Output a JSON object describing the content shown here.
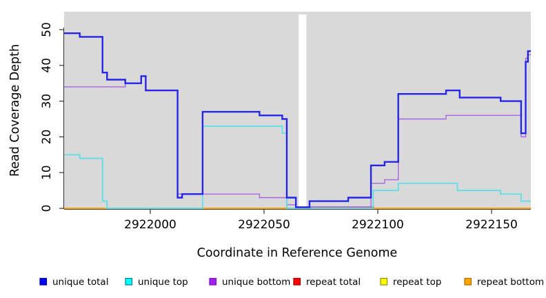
{
  "chart_data": {
    "type": "line",
    "subtype": "step-coverage",
    "title": "",
    "xlabel": "Coordinate in Reference Genome",
    "ylabel": "Read Coverage Depth",
    "xlim": [
      2921962,
      2922167.3
    ],
    "ylim": [
      0,
      50
    ],
    "x_ticks": [
      2922000,
      2922050,
      2922100,
      2922150
    ],
    "y_ticks": [
      0,
      10,
      20,
      30,
      40,
      50
    ],
    "grid": false,
    "panel_background": "#d9d9d9",
    "gap": {
      "note": "white uncovered column in plot",
      "from": 2922065.2,
      "to": 2922068.6
    },
    "legend_position": "bottom",
    "series": [
      {
        "name": "unique total",
        "color": "#2525e8",
        "steps": [
          [
            2921962,
            49
          ],
          [
            2921969,
            48
          ],
          [
            2921979,
            38
          ],
          [
            2921981,
            36
          ],
          [
            2921989,
            35
          ],
          [
            2921996,
            37
          ],
          [
            2921998,
            33
          ],
          [
            2922012,
            3
          ],
          [
            2922014,
            4
          ],
          [
            2922023,
            27
          ],
          [
            2922048,
            26
          ],
          [
            2922058,
            25
          ],
          [
            2922060,
            3
          ],
          [
            2922064,
            0.3
          ],
          [
            2922070,
            2
          ],
          [
            2922087,
            3
          ],
          [
            2922097,
            12
          ],
          [
            2922103,
            13
          ],
          [
            2922109,
            32
          ],
          [
            2922130,
            33
          ],
          [
            2922136,
            31
          ],
          [
            2922154,
            30
          ],
          [
            2922163,
            21
          ],
          [
            2922165,
            41
          ],
          [
            2922166,
            44
          ]
        ]
      },
      {
        "name": "unique top",
        "color": "#55dfe8",
        "steps": [
          [
            2921962,
            15
          ],
          [
            2921969,
            14
          ],
          [
            2921979,
            2
          ],
          [
            2921981,
            0
          ],
          [
            2922023,
            23
          ],
          [
            2922058,
            21
          ],
          [
            2922060,
            0
          ],
          [
            2922098,
            5
          ],
          [
            2922109,
            7
          ],
          [
            2922135,
            5
          ],
          [
            2922154,
            4
          ],
          [
            2922163,
            2
          ]
        ]
      },
      {
        "name": "unique bottom",
        "color": "#a566e0",
        "steps": [
          [
            2921962,
            34
          ],
          [
            2921989,
            35
          ],
          [
            2921996,
            37
          ],
          [
            2921998,
            33
          ],
          [
            2922012,
            4
          ],
          [
            2922048,
            3
          ],
          [
            2922060,
            1
          ],
          [
            2922064,
            0.4
          ],
          [
            2922097,
            7
          ],
          [
            2922103,
            8
          ],
          [
            2922109,
            25
          ],
          [
            2922130,
            26
          ],
          [
            2922163,
            20
          ],
          [
            2922165,
            42
          ],
          [
            2922166,
            43
          ]
        ]
      },
      {
        "name": "repeat total",
        "color": "#FF0000",
        "steps": [
          [
            2921962,
            0
          ]
        ]
      },
      {
        "name": "repeat top",
        "color": "#FFFF00",
        "steps": [
          [
            2921962,
            0
          ]
        ]
      },
      {
        "name": "repeat bottom",
        "color": "#FFA500",
        "steps": [
          [
            2921962,
            0
          ]
        ]
      }
    ],
    "baseline_overlays": [
      {
        "from": 2921980.5,
        "to": 2922023,
        "value": 0,
        "color": "#96DBA4"
      },
      {
        "from": 2922069,
        "to": 2922098.5,
        "value": 0.35,
        "color": "#E2608A"
      }
    ],
    "legend": {
      "items": [
        {
          "label": "unique total",
          "fill": "#0000FF",
          "border": "#00008B"
        },
        {
          "label": "unique top",
          "fill": "#00FFFF",
          "border": "#007F86"
        },
        {
          "label": "unique bottom",
          "fill": "#A020F0",
          "border": "#7A12BD"
        },
        {
          "label": "repeat total",
          "fill": "#FF0000",
          "border": "#990000"
        },
        {
          "label": "repeat top",
          "fill": "#FFFF00",
          "border": "#8B8B00"
        },
        {
          "label": "repeat bottom",
          "fill": "#FFA500",
          "border": "#B06F00"
        }
      ]
    }
  }
}
